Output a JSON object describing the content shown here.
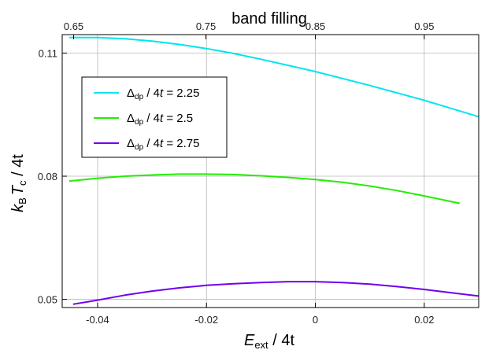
{
  "chart_data": {
    "type": "line",
    "title": "",
    "xlabel": {
      "main": "E",
      "sub": "ext",
      "rest": " / 4t"
    },
    "ylabel": {
      "k": "k",
      "ksub": "B",
      "t": "T",
      "tsub": "c",
      "rest": " / 4t"
    },
    "top_xlabel": "band filling",
    "xlim": [
      -0.0465,
      0.03
    ],
    "ylim": [
      0.048,
      0.1145
    ],
    "x_ticks": [
      {
        "value": -0.04,
        "label": "-0.04"
      },
      {
        "value": -0.02,
        "label": "-0.02"
      },
      {
        "value": 0.0,
        "label": "0"
      },
      {
        "value": 0.02,
        "label": "0.02"
      }
    ],
    "y_ticks": [
      {
        "value": 0.05,
        "label": "0.05"
      },
      {
        "value": 0.08,
        "label": "0.08"
      },
      {
        "value": 0.11,
        "label": "0.11"
      }
    ],
    "top_ticks": [
      {
        "value": -0.0444,
        "label": "0.65"
      },
      {
        "value": -0.0201,
        "label": "0.75"
      },
      {
        "value": 0.0,
        "label": "0.85"
      },
      {
        "value": 0.02,
        "label": "0.95"
      }
    ],
    "grid": true,
    "legend_position": "top-left",
    "series": [
      {
        "name": "2.25",
        "color": "#00e5ee",
        "x": [
          -0.0452,
          -0.04,
          -0.035,
          -0.03,
          -0.025,
          -0.02,
          -0.015,
          -0.01,
          -0.005,
          0.0,
          0.005,
          0.01,
          0.015,
          0.02,
          0.025,
          0.03
        ],
        "y": [
          0.1138,
          0.1138,
          0.1135,
          0.1129,
          0.1121,
          0.1111,
          0.1099,
          0.1085,
          0.107,
          0.1055,
          0.1038,
          0.1021,
          0.1003,
          0.0985,
          0.0965,
          0.0945
        ]
      },
      {
        "name": "2.5",
        "color": "#22ee00",
        "x": [
          -0.0452,
          -0.04,
          -0.035,
          -0.03,
          -0.025,
          -0.02,
          -0.015,
          -0.01,
          -0.005,
          0.0,
          0.005,
          0.01,
          0.015,
          0.02,
          0.0265
        ],
        "y": [
          0.0788,
          0.0795,
          0.08,
          0.0803,
          0.0805,
          0.0805,
          0.0804,
          0.0801,
          0.0797,
          0.0792,
          0.0785,
          0.0776,
          0.0765,
          0.0752,
          0.0734
        ]
      },
      {
        "name": "2.75",
        "color": "#7000ee",
        "x": [
          -0.0445,
          -0.04,
          -0.035,
          -0.03,
          -0.025,
          -0.02,
          -0.015,
          -0.01,
          -0.005,
          0.0,
          0.005,
          0.01,
          0.015,
          0.02,
          0.025,
          0.03
        ],
        "y": [
          0.0488,
          0.0498,
          0.051,
          0.052,
          0.0528,
          0.0534,
          0.0538,
          0.0541,
          0.0543,
          0.0543,
          0.0541,
          0.0537,
          0.0531,
          0.0524,
          0.0516,
          0.0508
        ]
      }
    ],
    "legend_prefix": {
      "delta": "Δ",
      "sub": "dp",
      "rest": " / 4t = "
    }
  }
}
